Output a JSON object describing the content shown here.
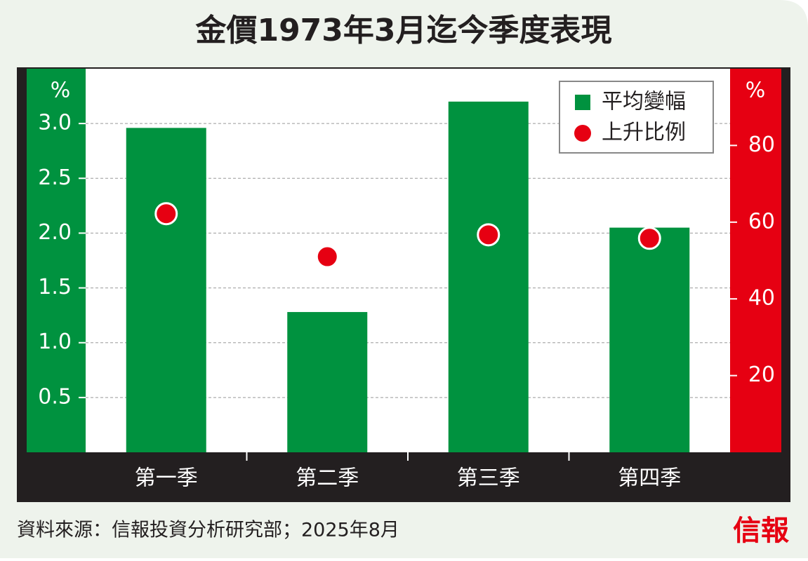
{
  "chart_data": {
    "type": "bar",
    "title": "金價1973年3月迄今季度表現",
    "categories": [
      "第一季",
      "第二季",
      "第三季",
      "第四季"
    ],
    "series": [
      {
        "name": "平均變幅",
        "type": "bar",
        "color": "#00923f",
        "values": [
          2.96,
          1.28,
          3.2,
          2.05
        ]
      },
      {
        "name": "上升比例",
        "type": "scatter",
        "axis": "y2",
        "color": "#e60012",
        "values": [
          62.2,
          51,
          56.7,
          55.8
        ]
      }
    ],
    "ylabel": "%",
    "y2label": "%",
    "ylim": [
      0,
      3.5
    ],
    "yticks": [
      0.5,
      {
        "value": 1,
        "label": "1.0"
      },
      1.5,
      {
        "value": 2,
        "label": "2.0"
      },
      2.5,
      {
        "value": 3,
        "label": "3.0"
      }
    ],
    "y2lim": [
      0,
      100
    ],
    "y2ticks": [
      20,
      40,
      60,
      80
    ],
    "grid": true,
    "legend": "top-right"
  },
  "source": "資料來源：信報投資分析研究部；2025年8月",
  "logo": "信報"
}
